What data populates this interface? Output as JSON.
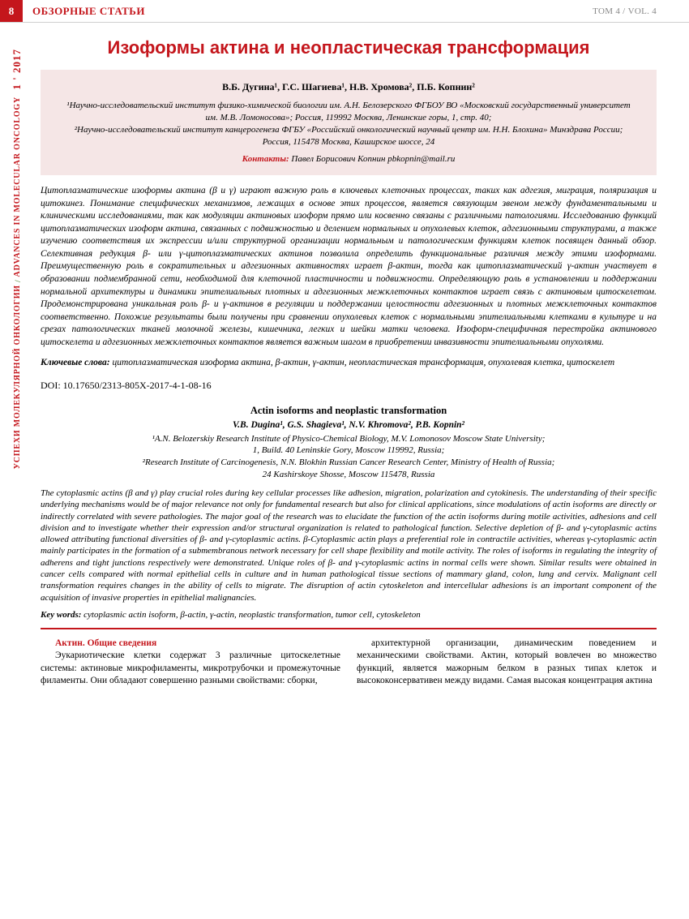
{
  "header": {
    "page_number": "8",
    "section": "ОБЗОРНЫЕ СТАТЬИ",
    "volume": "ТОМ 4 / VOL. 4"
  },
  "sidebar": {
    "journal_ru": "УСПЕХИ МОЛЕКУЛЯРНОЙ ОНКОЛОГИИ",
    "journal_en": "ADVANCES IN MOLECULAR ONCOLOGY",
    "issue_year": "1 ' 2017"
  },
  "article": {
    "title_ru": "Изоформы актина и неопластическая трансформация",
    "authors_ru": "В.Б. Дугина¹, Г.С. Шагиева¹, Н.В. Хромова², П.Б. Копнин²",
    "affiliations_ru": "¹Научно-исследовательский институт физико-химической биологии им. А.Н. Белозерского ФГБОУ ВО «Московский государственный университет им. М.В. Ломоносова»; Россия, 119992 Москва, Ленинские горы, 1, стр. 40;\n²Научно-исследовательский институт канцерогенеза ФГБУ «Российский онкологический научный центр им. Н.Н. Блохина» Минздрава России; Россия, 115478 Москва, Каширское шоссе, 24",
    "contact_label": "Контакты:",
    "contact_text": "Павел Борисович Копнин pbkopnin@mail.ru",
    "abstract_ru": "Цитоплазматические изоформы актина (β и γ) играют важную роль в ключевых клеточных процессах, таких как адгезия, миграция, поляризация и цитокинез. Понимание специфических механизмов, лежащих в основе этих процессов, является связующим звеном между фундаментальными и клиническими исследованиями, так как модуляции актиновых изоформ прямо или косвенно связаны с различными патологиями. Исследованию функций цитоплазматических изоформ актина, связанных с подвижностью и делением нормальных и опухолевых клеток, адгезионными структурами, а также изучению соответствия их экспрессии и/или структурной организации нормальным и патологическим функциям клеток посвящен данный обзор. Селективная редукция β- или γ-цитоплазматических актинов позволила определить функциональные различия между этими изоформами. Преимущественную роль в сократительных и адгезионных активностях играет β-актин, тогда как цитоплазматический γ-актин участвует в образовании подмембранной сети, необходимой для клеточной пластичности и подвижности. Определяющую роль в установлении и поддержании нормальной архитектуры и динамики эпителиальных плотных и адгезионных межклеточных контактов играет связь с актиновым цитоскелетом. Продемонстрирована уникальная роль β- и γ-актинов в регуляции и поддержании целостности адгезионных и плотных межклеточных контактов соответственно. Похожие результаты были получены при сравнении опухолевых клеток с нормальными эпителиальными клетками в культуре и на срезах патологических тканей молочной железы, кишечника, легких и шейки матки человека. Изоформ-специфичная перестройка актинового цитоскелета и адгезионных межклеточных контактов является важным шагом в приобретении инвазивности эпителиальными опухолями.",
    "keywords_ru_label": "Ключевые слова:",
    "keywords_ru": "цитоплазматическая изоформа актина, β-актин, γ-актин, неопластическая трансформация, опухолевая клетка, цитоскелет",
    "doi": "DOI: 10.17650/2313-805X-2017-4-1-08-16",
    "title_en": "Actin isoforms and neoplastic transformation",
    "authors_en": "V.B. Dugina¹, G.S. Shagieva¹, N.V. Khromova², P.B. Kopnin²",
    "affiliations_en": "¹A.N. Belozerskiy Research Institute of Physico-Chemical Biology, M.V. Lomonosov Moscow State University;\n1, Build. 40 Leninskie Gory, Moscow 119992, Russia;\n²Research Institute of Carcinogenesis, N.N. Blokhin Russian Cancer Research Center, Ministry of Health of Russia;\n24 Kashirskoye Shosse, Moscow 115478, Russia",
    "abstract_en": "The cytoplasmic actins (β and γ) play crucial roles during key cellular processes like adhesion, migration, polarization and cytokinesis. The understanding of their specific underlying mechanisms would be of major relevance not only for fundamental research but also for clinical applications, since modulations of actin isoforms are directly or indirectly correlated with severe pathologies. The major goal of the research was to elucidate the function of the actin isoforms during motile activities, adhesions and cell division and to investigate whether their expression and/or structural organization is related to pathological function. Selective depletion of β- and γ-cytoplasmic actins allowed attributing functional diversities of β- and γ-cytoplasmic actins. β-Cytoplasmic actin plays a preferential role in contractile activities, whereas γ-cytoplasmic actin mainly participates in the formation of a submembranous network necessary for cell shape flexibility and motile activity. The roles of isoforms in regulating the integrity of adherens and tight junctions respectively were demonstrated. Unique roles of β- and γ-cytoplasmic actins in normal cells were shown. Similar results were obtained in cancer cells compared with normal epithelial cells in culture and in human pathological tissue sections of mammary gland, colon, lung and cervix. Malignant cell transformation requires changes in the ability of cells to migrate. The disruption of actin cytoskeleton and intercellular adhesions is an important component of the acquisition of invasive properties in epithelial malignancies.",
    "keywords_en_label": "Key words:",
    "keywords_en": "cytoplasmic actin isoform, β-actin, γ-actin, neoplastic transformation, tumor cell, cytoskeleton"
  },
  "body": {
    "heading": "Актин. Общие сведения",
    "col1": "Эукариотические клетки содержат 3 различные цитоскелетные системы: актиновые микрофиламенты, микротрубочки и промежуточные филаменты. Они обладают совершенно разными свойствами: сборки,",
    "col2": "архитектурной организации, динамическим поведением и механическими свойствами. Актин, который вовлечен во множество функций, является мажорным белком в разных типах клеток и высококонсервативен между видами. Самая высокая концентрация актина"
  },
  "colors": {
    "accent_red": "#c4161c",
    "box_bg": "#f5e6e6",
    "text_gray": "#888888"
  }
}
